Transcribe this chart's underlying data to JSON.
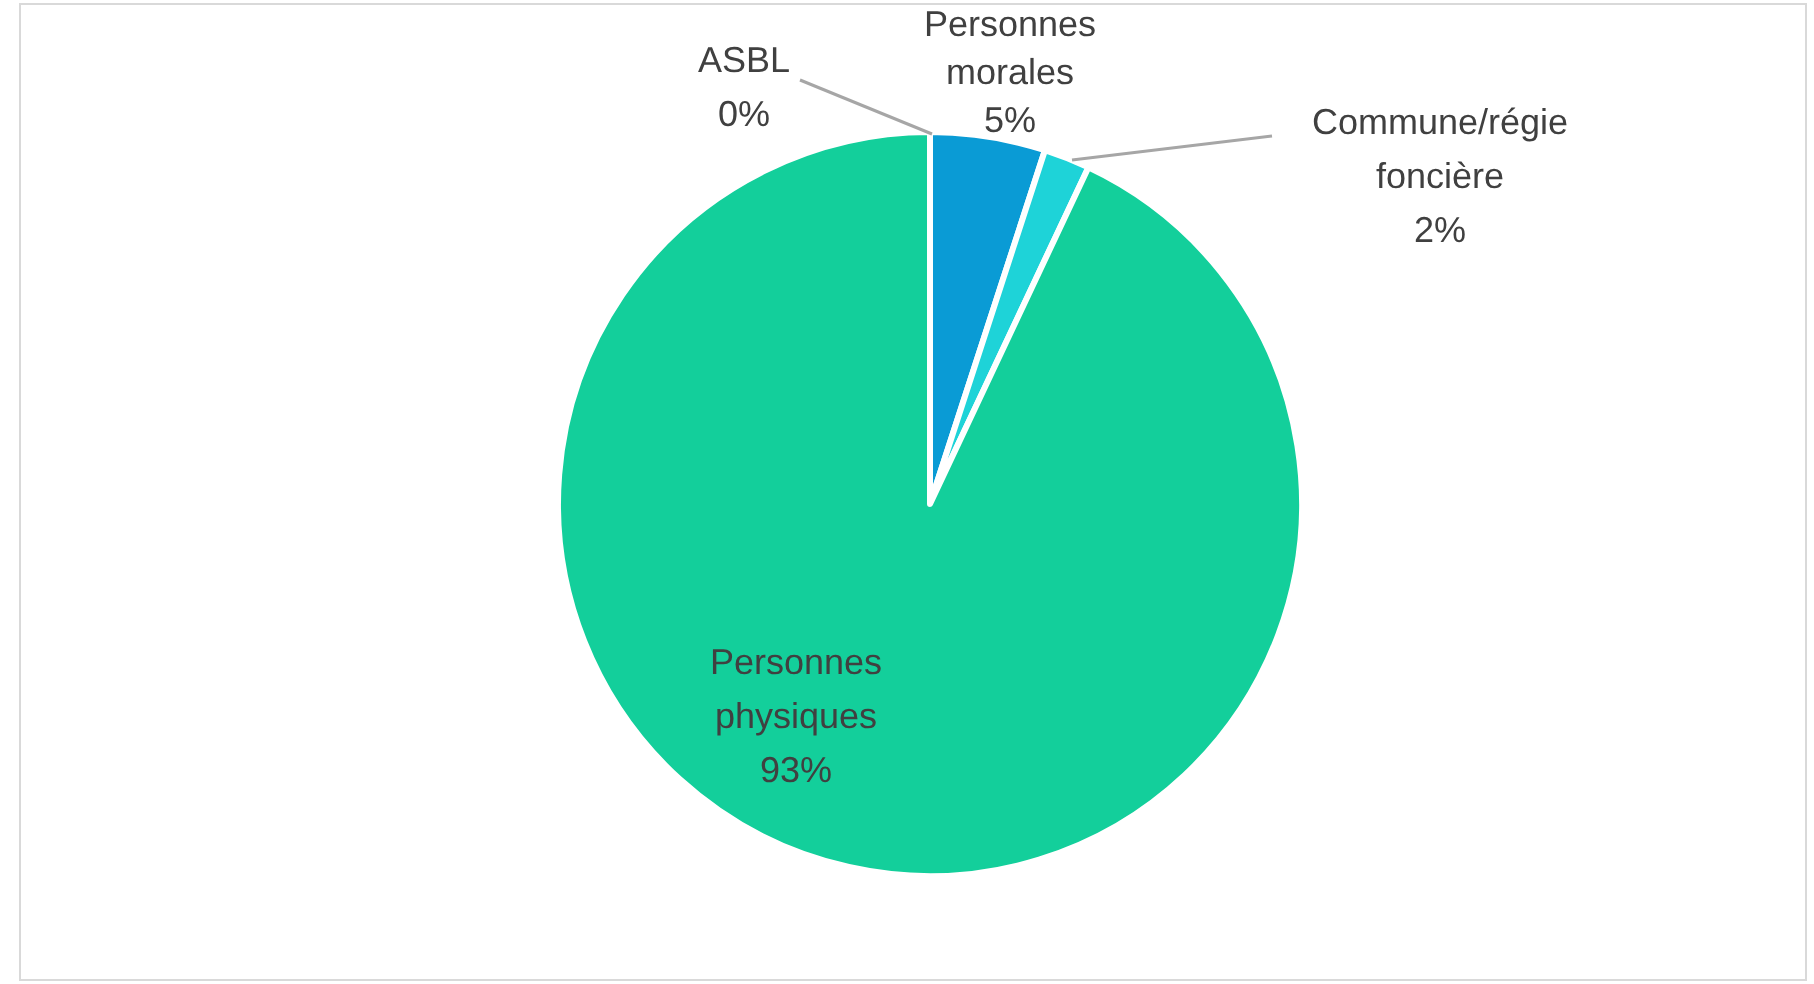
{
  "chart_data": {
    "type": "pie",
    "categories": [
      "ASBL",
      "Personnes morales",
      "Commune/régie foncière",
      "Personnes physiques"
    ],
    "values": [
      0,
      5,
      2,
      93
    ],
    "value_labels": [
      "0%",
      "5%",
      "2%",
      "93%"
    ],
    "colors": [
      "#a5a5a5",
      "#0a9bd5",
      "#1ed3d8",
      "#13cf9b"
    ],
    "legend": false
  }
}
